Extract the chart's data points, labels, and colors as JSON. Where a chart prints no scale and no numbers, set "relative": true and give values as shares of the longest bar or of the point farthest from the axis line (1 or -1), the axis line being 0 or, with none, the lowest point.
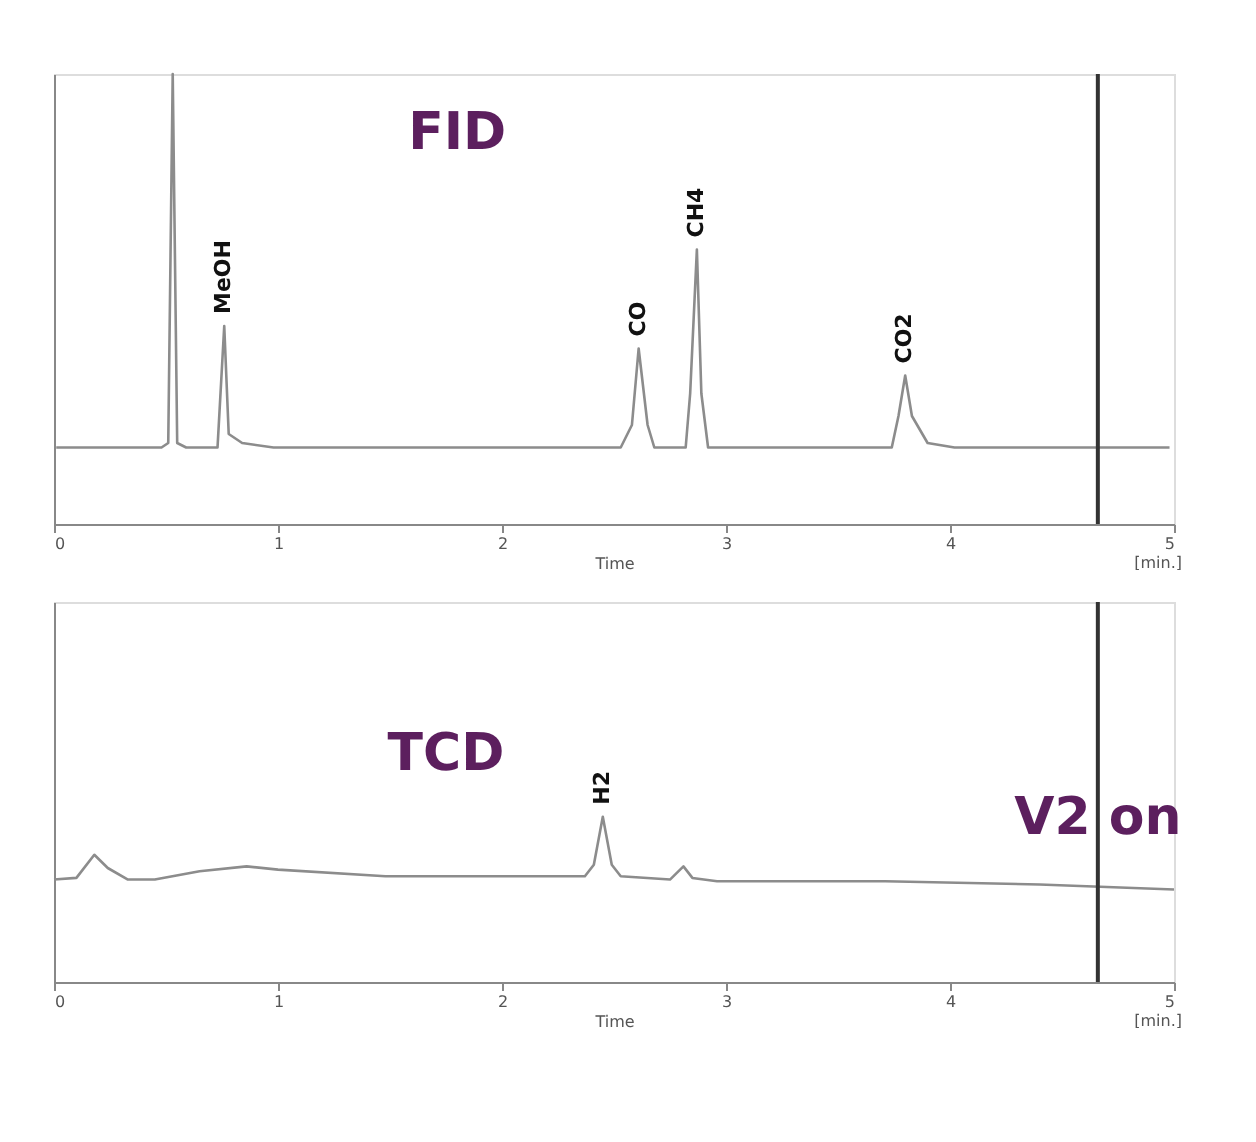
{
  "chart_data": [
    {
      "type": "line",
      "title": "FID",
      "xlabel": "Time",
      "xlim": [
        0,
        5
      ],
      "xticks": [
        0,
        1,
        2,
        3,
        4,
        5
      ],
      "relative": true,
      "tick_labels": "x",
      "grid": false,
      "color": "#8c8c8c",
      "x": [
        0.01,
        0.48,
        0.51,
        0.53,
        0.55,
        0.59,
        0.73,
        0.76,
        0.78,
        0.84,
        0.98,
        2.53,
        2.58,
        2.61,
        2.65,
        2.68,
        2.82,
        2.84,
        2.87,
        2.89,
        2.92,
        3.74,
        3.77,
        3.8,
        3.83,
        3.9,
        4.02,
        4.98
      ],
      "values": [
        0.17,
        0.17,
        0.18,
        1.0,
        0.18,
        0.17,
        0.17,
        0.44,
        0.2,
        0.18,
        0.17,
        0.17,
        0.22,
        0.39,
        0.22,
        0.17,
        0.17,
        0.29,
        0.61,
        0.29,
        0.17,
        0.17,
        0.24,
        0.33,
        0.24,
        0.18,
        0.17,
        0.17
      ],
      "annotations": [
        {
          "text": "MeOH",
          "x": 0.76,
          "y": 0.44
        },
        {
          "text": "CO",
          "x": 2.61,
          "y": 0.39
        },
        {
          "text": "CH4",
          "x": 2.87,
          "y": 0.61
        },
        {
          "text": "CO2",
          "x": 3.8,
          "y": 0.33
        },
        "[min.]"
      ],
      "ref_lines": [
        {
          "axis": "x",
          "value": 4.66,
          "color": "#333333"
        }
      ]
    },
    {
      "type": "line",
      "title": "TCD",
      "xlabel": "Time",
      "xlim": [
        0,
        5
      ],
      "xticks": [
        0,
        1,
        2,
        3,
        4,
        5
      ],
      "relative": true,
      "tick_labels": "x",
      "grid": false,
      "color": "#8c8c8c",
      "x": [
        0,
        0.1,
        0.18,
        0.24,
        0.33,
        0.45,
        0.65,
        0.86,
        1.0,
        1.48,
        2.37,
        2.41,
        2.45,
        2.49,
        2.53,
        2.75,
        2.81,
        2.85,
        2.96,
        3.71,
        4.4,
        5.0
      ],
      "values": [
        0.62,
        0.63,
        0.77,
        0.69,
        0.62,
        0.62,
        0.67,
        0.7,
        0.68,
        0.64,
        0.64,
        0.71,
        1.0,
        0.71,
        0.64,
        0.62,
        0.7,
        0.63,
        0.61,
        0.61,
        0.59,
        0.56
      ],
      "annotations": [
        {
          "text": "H2",
          "x": 2.45,
          "y": 1.0
        },
        "[min.]"
      ],
      "ref_lines": [
        {
          "axis": "x",
          "value": 4.66,
          "label": "V2 on",
          "color": "#333333"
        }
      ]
    }
  ]
}
